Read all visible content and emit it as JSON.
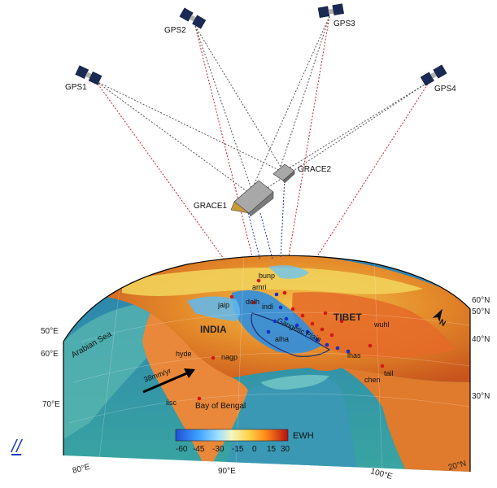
{
  "satellites": {
    "gps1": "GPS1",
    "gps2": "GPS2",
    "gps3": "GPS3",
    "gps4": "GPS4",
    "grace1": "GRACE1",
    "grace2": "GRACE2"
  },
  "regions": {
    "india": "INDIA",
    "tibet": "TIBET",
    "arabian_sea": "Arabian Sea",
    "bay_of_bengal": "Bay of Bengal",
    "gangetic_plain": "Gangetic Plain"
  },
  "stations": [
    "bunp",
    "amri",
    "jaip",
    "delh",
    "indi",
    "alha",
    "hyde",
    "nagp",
    "iisc",
    "hyde",
    "lhas",
    "wuhl",
    "chen",
    "tail"
  ],
  "velocity_label": "38mm/yr",
  "longitudes": [
    "50°E",
    "60°E",
    "70°E",
    "80°E",
    "90°E",
    "100°E",
    "20°N"
  ],
  "latitudes": [
    "60°N",
    "50°N",
    "40°N",
    "30°N"
  ],
  "colorbar": {
    "title": "EWH",
    "ticks": [
      "-60",
      "-45",
      "-30",
      "-15",
      "0",
      "15",
      "30"
    ],
    "colors": [
      "#1f4fd8",
      "#3fa0ff",
      "#7fd0ff",
      "#bfeaff",
      "#ffffb0",
      "#ffd24a",
      "#ff8a1a",
      "#e8301a",
      "#b81010"
    ]
  },
  "north_label": "N",
  "corner_link": "//"
}
